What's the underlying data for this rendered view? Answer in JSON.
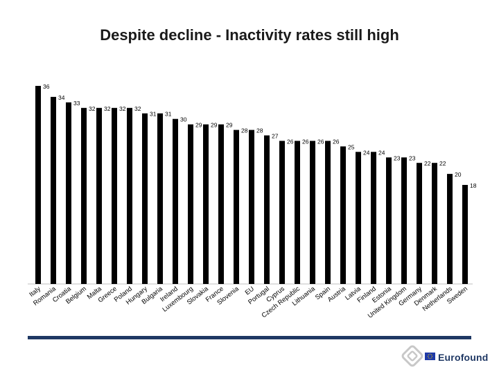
{
  "chart_data": {
    "type": "bar",
    "title": "Despite decline - Inactivity rates still high",
    "categories": [
      "Italy",
      "Romania",
      "Croatia",
      "Belgium",
      "Malta",
      "Greece",
      "Poland",
      "Hungary",
      "Bulgaria",
      "Ireland",
      "Luxembourg",
      "Slovakia",
      "France",
      "Slovenia",
      "EU",
      "Portugal",
      "Cyprus",
      "Czech Republic",
      "Lithuania",
      "Spain",
      "Austria",
      "Latvia",
      "Finland",
      "Estonia",
      "United Kingdom",
      "Germany",
      "Denmark",
      "Netherlands",
      "Sweden"
    ],
    "values": [
      36,
      34,
      33,
      32,
      32,
      32,
      32,
      31,
      31,
      30,
      29,
      29,
      29,
      28,
      28,
      27,
      26,
      26,
      26,
      26,
      25,
      24,
      24,
      23,
      23,
      22,
      22,
      20,
      18
    ],
    "xlabel": "",
    "ylabel": "",
    "ylim": [
      0,
      36
    ],
    "grid": false,
    "legend": "none",
    "bar_color": "#000000"
  },
  "footer": {
    "brand": "Eurofound",
    "accent_color": "#1f3864"
  }
}
